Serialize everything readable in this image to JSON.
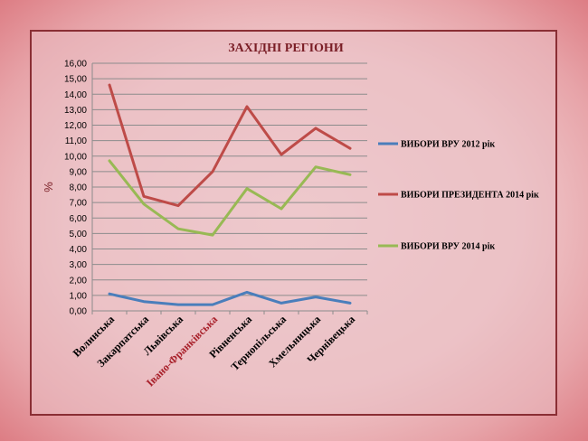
{
  "chart_data": {
    "type": "line",
    "title": "ЗАХІДНІ РЕГІОНИ",
    "xlabel": "",
    "ylabel": "%",
    "ylim": [
      0,
      16
    ],
    "ytick_labels": [
      "0,00",
      "1,00",
      "2,00",
      "3,00",
      "4,00",
      "5,00",
      "6,00",
      "7,00",
      "8,00",
      "9,00",
      "10,00",
      "11,00",
      "12,00",
      "13,00",
      "14,00",
      "15,00",
      "16,00"
    ],
    "categories": [
      "Волинська",
      "Закарпатська",
      "Львівська",
      "Івано-Франківська",
      "Рівненська",
      "Тернопільська",
      "Хмельницька",
      "Чернівецька"
    ],
    "category_colors": [
      "#000000",
      "#000000",
      "#000000",
      "#a8202a",
      "#000000",
      "#000000",
      "#000000",
      "#000000"
    ],
    "grid": true,
    "legend_position": "right",
    "series": [
      {
        "name": "ВИБОРИ ВРУ 2012 рік",
        "color": "#4a7ebb",
        "values": [
          1.1,
          0.6,
          0.4,
          0.4,
          1.2,
          0.5,
          0.9,
          0.5
        ]
      },
      {
        "name": "ВИБОРИ ПРЕЗИДЕНТА  2014 рік",
        "color": "#be4b48",
        "values": [
          14.6,
          7.4,
          6.8,
          9.0,
          13.2,
          10.1,
          11.8,
          10.5
        ]
      },
      {
        "name": "ВИБОРИ ВРУ 2014 рік",
        "color": "#98b954",
        "values": [
          9.7,
          6.9,
          5.3,
          4.9,
          7.9,
          6.6,
          9.3,
          8.8
        ]
      }
    ]
  }
}
